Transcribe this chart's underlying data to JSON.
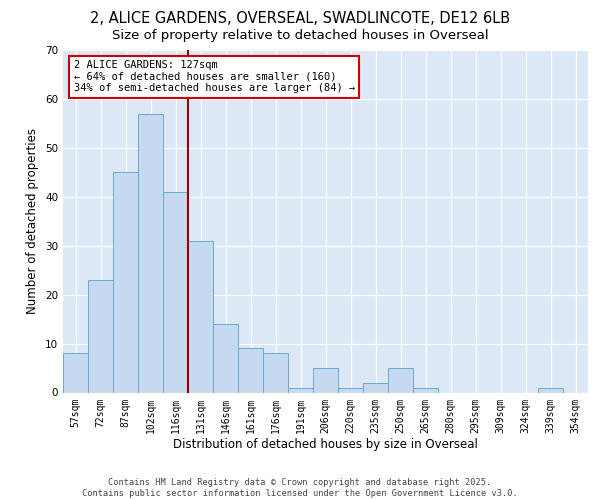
{
  "title1": "2, ALICE GARDENS, OVERSEAL, SWADLINCOTE, DE12 6LB",
  "title2": "Size of property relative to detached houses in Overseal",
  "xlabel": "Distribution of detached houses by size in Overseal",
  "ylabel": "Number of detached properties",
  "categories": [
    "57sqm",
    "72sqm",
    "87sqm",
    "102sqm",
    "116sqm",
    "131sqm",
    "146sqm",
    "161sqm",
    "176sqm",
    "191sqm",
    "206sqm",
    "220sqm",
    "235sqm",
    "250sqm",
    "265sqm",
    "280sqm",
    "295sqm",
    "309sqm",
    "324sqm",
    "339sqm",
    "354sqm"
  ],
  "values": [
    8,
    23,
    45,
    57,
    41,
    31,
    14,
    9,
    8,
    1,
    5,
    1,
    2,
    5,
    1,
    0,
    0,
    0,
    0,
    1,
    0
  ],
  "bar_color": "#c5d9f0",
  "bar_edge_color": "#6aaad4",
  "vline_position": 4.5,
  "vline_color": "#990000",
  "annotation_text": "2 ALICE GARDENS: 127sqm\n← 64% of detached houses are smaller (160)\n34% of semi-detached houses are larger (84) →",
  "annotation_box_facecolor": "white",
  "annotation_box_edgecolor": "#cc0000",
  "ylim": [
    0,
    70
  ],
  "yticks": [
    0,
    10,
    20,
    30,
    40,
    50,
    60,
    70
  ],
  "footer": "Contains HM Land Registry data © Crown copyright and database right 2025.\nContains public sector information licensed under the Open Government Licence v3.0.",
  "plot_bg_color": "#dce8f5",
  "grid_color": "#ffffff",
  "title_fontsize": 10.5,
  "subtitle_fontsize": 9.5,
  "tick_fontsize": 7,
  "label_fontsize": 8.5,
  "footer_fontsize": 6.2,
  "annot_fontsize": 7.5
}
